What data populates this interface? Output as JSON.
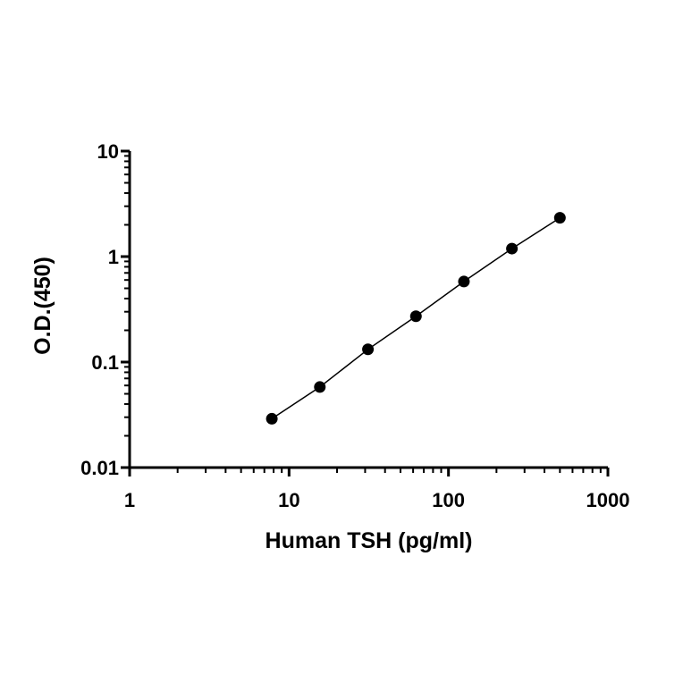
{
  "chart_data": {
    "type": "scatter",
    "title": "",
    "xlabel": "Human TSH (pg/ml)",
    "ylabel": "O.D.(450)",
    "x_scale": "log",
    "y_scale": "log",
    "xlim": [
      1,
      1000
    ],
    "ylim": [
      0.01,
      10
    ],
    "x_ticks": [
      {
        "value": 1,
        "label": "1"
      },
      {
        "value": 10,
        "label": "10"
      },
      {
        "value": 100,
        "label": "100"
      },
      {
        "value": 1000,
        "label": "1000"
      }
    ],
    "y_ticks": [
      {
        "value": 0.01,
        "label": "0.01"
      },
      {
        "value": 0.1,
        "label": "0.1"
      },
      {
        "value": 1,
        "label": "1"
      },
      {
        "value": 10,
        "label": "10"
      }
    ],
    "grid": false,
    "legend": "none",
    "series": [
      {
        "x": [
          7.8,
          15.6,
          31.25,
          62.5,
          125,
          250,
          500
        ],
        "y": [
          0.029,
          0.058,
          0.132,
          0.272,
          0.58,
          1.19,
          2.33
        ],
        "marker": "circle",
        "fit_line": true,
        "color": "#000000"
      }
    ]
  }
}
